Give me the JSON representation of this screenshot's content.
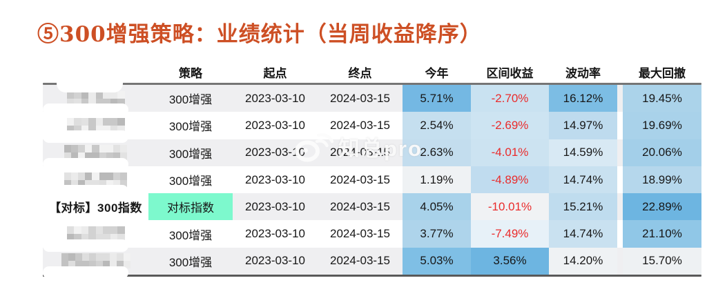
{
  "title": "⑤300增强策略：业绩统计（当周收益降序）",
  "watermark": {
    "icon": "weibo-eye-icon",
    "text": "知总pro"
  },
  "colors": {
    "title": "#cd4f24",
    "negative": "#ea2b2b",
    "row_alt": "#efeff1",
    "row_white": "#ffffff",
    "benchmark_highlight": "#7df9cd",
    "border_top": "#757575",
    "border_bottom": "#595959"
  },
  "table": {
    "headers": [
      "策略",
      "起点",
      "终点",
      "今年",
      "区间收益",
      "波动率",
      "最大回撤"
    ],
    "rows": [
      {
        "name": "",
        "masked": true,
        "mosaic_width": 84,
        "strategy": "300增强",
        "strategy_highlight": false,
        "start": "2023-03-10",
        "end": "2024-03-15",
        "values": [
          {
            "v": "5.71%",
            "bg": "#74b8e3",
            "neg": false
          },
          {
            "v": "-2.70%",
            "bg": "#c9e2f1",
            "neg": true
          },
          {
            "v": "16.12%",
            "bg": "#7cbde4",
            "neg": false
          },
          {
            "v": "19.45%",
            "bg": "#abd3ea",
            "neg": false
          }
        ]
      },
      {
        "name": "",
        "masked": true,
        "mosaic_width": 84,
        "strategy": "300增强",
        "strategy_highlight": false,
        "start": "2023-03-10",
        "end": "2024-03-15",
        "values": [
          {
            "v": "2.54%",
            "bg": "#c5dfef",
            "neg": false
          },
          {
            "v": "-2.69%",
            "bg": "#cde4f2",
            "neg": true
          },
          {
            "v": "14.97%",
            "bg": "#bedbee",
            "neg": false
          },
          {
            "v": "19.69%",
            "bg": "#a9d2ea",
            "neg": false
          }
        ]
      },
      {
        "name": "",
        "masked": true,
        "mosaic_width": 92,
        "strategy": "300增强",
        "strategy_highlight": false,
        "start": "2023-03-10",
        "end": "2024-03-15",
        "values": [
          {
            "v": "2.63%",
            "bg": "#c3ddee",
            "neg": false
          },
          {
            "v": "-4.01%",
            "bg": "#cce3f1",
            "neg": true
          },
          {
            "v": "14.59%",
            "bg": "#d8e9f4",
            "neg": false
          },
          {
            "v": "20.06%",
            "bg": "#a3cfe9",
            "neg": false
          }
        ]
      },
      {
        "name": "",
        "masked": true,
        "mosaic_width": 92,
        "strategy": "300增强",
        "strategy_highlight": false,
        "start": "2023-03-10",
        "end": "2024-03-15",
        "values": [
          {
            "v": "1.19%",
            "bg": "#eff2f4",
            "neg": false
          },
          {
            "v": "-4.89%",
            "bg": "#c0dcef",
            "neg": true
          },
          {
            "v": "14.74%",
            "bg": "#c9e1f0",
            "neg": false
          },
          {
            "v": "18.99%",
            "bg": "#b5d7ec",
            "neg": false
          }
        ]
      },
      {
        "name": "【对标】300指数",
        "masked": false,
        "mosaic_width": 0,
        "strategy": "对标指数",
        "strategy_highlight": true,
        "start": "2023-03-10",
        "end": "2024-03-15",
        "values": [
          {
            "v": "4.05%",
            "bg": "#a8d2ea",
            "neg": false
          },
          {
            "v": "-10.01%",
            "bg": "#f0f2f4",
            "neg": true
          },
          {
            "v": "15.21%",
            "bg": "#bfdcee",
            "neg": false
          },
          {
            "v": "22.89%",
            "bg": "#6db5e1",
            "neg": false
          }
        ]
      },
      {
        "name": "",
        "masked": true,
        "mosaic_width": 84,
        "strategy": "300增强",
        "strategy_highlight": false,
        "start": "2023-03-10",
        "end": "2024-03-15",
        "values": [
          {
            "v": "3.77%",
            "bg": "#aed4eb",
            "neg": false
          },
          {
            "v": "-7.49%",
            "bg": "#e7f1f8",
            "neg": true
          },
          {
            "v": "14.74%",
            "bg": "#c9e1f0",
            "neg": false
          },
          {
            "v": "21.10%",
            "bg": "#90c7e7",
            "neg": false
          }
        ]
      },
      {
        "name": "",
        "masked": true,
        "mosaic_width": 100,
        "strategy": "300增强",
        "strategy_highlight": false,
        "start": "2023-03-10",
        "end": "2024-03-15",
        "values": [
          {
            "v": "5.03%",
            "bg": "#7fbfe5",
            "neg": false
          },
          {
            "v": "3.56%",
            "bg": "#6db5e1",
            "neg": false
          },
          {
            "v": "14.20%",
            "bg": "#eff2f4",
            "neg": false
          },
          {
            "v": "15.70%",
            "bg": "#eef1f3",
            "neg": false
          }
        ]
      }
    ]
  }
}
